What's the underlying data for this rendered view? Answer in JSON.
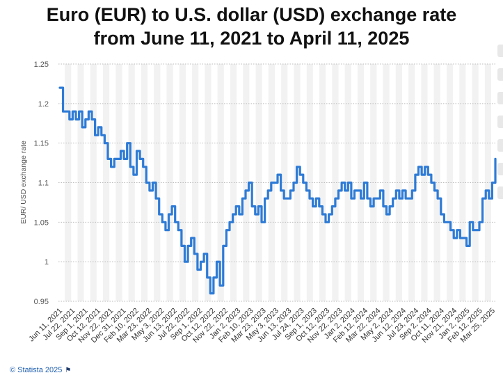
{
  "chart_data": {
    "type": "line",
    "title_line1": "Euro (EUR) to U.S. dollar (USD) exchange rate",
    "title_line2": "from June 11, 2021 to April 11, 2025",
    "ylabel": "EUR/ USD exchange rate",
    "xlabel": "",
    "ylim": [
      0.95,
      1.25
    ],
    "yticks": [
      "1.25",
      "1.2",
      "1.15",
      "1.1",
      "1.05",
      "1",
      "0.95"
    ],
    "ytick_values": [
      1.25,
      1.2,
      1.15,
      1.1,
      1.05,
      1.0,
      0.95
    ],
    "xticks": [
      "Jun 11, 2021",
      "Jul 22, 2021",
      "Sep 1, 2021",
      "Oct 12, 2021",
      "Nov 22, 2021",
      "Dec 31, 2021",
      "Feb 10, 2022",
      "Mar 23, 2022",
      "May 3, 2022",
      "Jun 13, 2022",
      "Jul 22, 2022",
      "Sep 1, 2022",
      "Oct 12, 2022",
      "Nov 22, 2022",
      "Jan 2, 2023",
      "Feb 10, 2023",
      "Mar 23, 2023",
      "May 3, 2023",
      "Jun 13, 2023",
      "Jul 24, 2023",
      "Sep 1, 2023",
      "Oct 12, 2023",
      "Nov 22, 2023",
      "Jan 2, 2024",
      "Feb 12, 2024",
      "Mar 22, 2024",
      "May 2, 2024",
      "Jun 12, 2024",
      "Jul 23, 2024",
      "Sep 2, 2024",
      "Oct 11, 2024",
      "Nov 21, 2024",
      "Jan 2, 2025",
      "Feb 12, 2025",
      "Mar 25, 2025"
    ],
    "series": [
      {
        "name": "EUR/USD",
        "color": "#2e7bd6",
        "values": [
          1.22,
          1.19,
          1.19,
          1.18,
          1.19,
          1.18,
          1.19,
          1.17,
          1.18,
          1.19,
          1.18,
          1.16,
          1.17,
          1.16,
          1.15,
          1.13,
          1.12,
          1.13,
          1.13,
          1.14,
          1.13,
          1.15,
          1.12,
          1.11,
          1.14,
          1.13,
          1.12,
          1.1,
          1.09,
          1.1,
          1.08,
          1.06,
          1.05,
          1.04,
          1.06,
          1.07,
          1.05,
          1.04,
          1.02,
          1.0,
          1.02,
          1.03,
          1.01,
          0.99,
          1.0,
          1.01,
          0.98,
          0.96,
          0.98,
          1.0,
          0.97,
          1.02,
          1.04,
          1.05,
          1.06,
          1.07,
          1.06,
          1.08,
          1.09,
          1.1,
          1.07,
          1.06,
          1.07,
          1.05,
          1.08,
          1.09,
          1.1,
          1.1,
          1.11,
          1.09,
          1.08,
          1.08,
          1.09,
          1.1,
          1.12,
          1.11,
          1.1,
          1.09,
          1.08,
          1.07,
          1.08,
          1.07,
          1.06,
          1.05,
          1.06,
          1.07,
          1.08,
          1.09,
          1.1,
          1.09,
          1.1,
          1.08,
          1.09,
          1.09,
          1.08,
          1.1,
          1.08,
          1.07,
          1.08,
          1.08,
          1.09,
          1.07,
          1.06,
          1.07,
          1.08,
          1.09,
          1.08,
          1.09,
          1.08,
          1.08,
          1.09,
          1.11,
          1.12,
          1.11,
          1.12,
          1.11,
          1.1,
          1.09,
          1.08,
          1.06,
          1.05,
          1.05,
          1.04,
          1.03,
          1.04,
          1.03,
          1.03,
          1.02,
          1.05,
          1.04,
          1.04,
          1.05,
          1.08,
          1.09,
          1.08,
          1.1,
          1.13
        ]
      }
    ],
    "grid": true,
    "legend": "none"
  },
  "credit": {
    "text": "© Statista 2025",
    "flag_icon": "flag-icon"
  },
  "colors": {
    "line": "#2e7bd6",
    "band": "#f2f2f2",
    "grid": "#bbbbbb"
  }
}
